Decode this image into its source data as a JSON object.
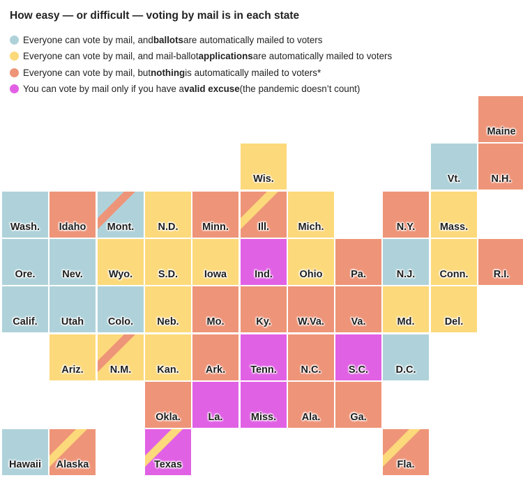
{
  "title": "How easy — or difficult — voting by mail is in each state",
  "colors": {
    "ballots": "#afd2da",
    "applications": "#fcd97a",
    "nothing": "#ee9478",
    "excuse": "#e161e5"
  },
  "legend": [
    {
      "key": "ballots",
      "pre": "Everyone can vote by mail, and ",
      "bold": "ballots",
      "post": " are automatically mailed to voters"
    },
    {
      "key": "applications",
      "pre": "Everyone can vote by mail, and mail-ballot ",
      "bold": "applications",
      "post": " are automatically mailed to voters"
    },
    {
      "key": "nothing",
      "pre": "Everyone can vote by mail, but ",
      "bold": "nothing",
      "post": " is automatically mailed to voters*"
    },
    {
      "key": "excuse",
      "pre": "You can vote by mail only if you have a ",
      "bold": "valid excuse",
      "post": " (the pandemic doesn’t count)"
    }
  ],
  "states": [
    {
      "label": "Maine",
      "row": 0,
      "col": 10,
      "category": "nothing"
    },
    {
      "label": "Wis.",
      "row": 1,
      "col": 5,
      "category": "applications"
    },
    {
      "label": "Vt.",
      "row": 1,
      "col": 9,
      "category": "ballots"
    },
    {
      "label": "N.H.",
      "row": 1,
      "col": 10,
      "category": "nothing"
    },
    {
      "label": "Wash.",
      "row": 2,
      "col": 0,
      "category": "ballots"
    },
    {
      "label": "Idaho",
      "row": 2,
      "col": 1,
      "category": "nothing"
    },
    {
      "label": "Mont.",
      "row": 2,
      "col": 2,
      "category": "ballots",
      "stripe": "nothing"
    },
    {
      "label": "N.D.",
      "row": 2,
      "col": 3,
      "category": "applications"
    },
    {
      "label": "Minn.",
      "row": 2,
      "col": 4,
      "category": "nothing"
    },
    {
      "label": "Ill.",
      "row": 2,
      "col": 5,
      "category": "nothing",
      "stripe": "applications"
    },
    {
      "label": "Mich.",
      "row": 2,
      "col": 6,
      "category": "applications"
    },
    {
      "label": "N.Y.",
      "row": 2,
      "col": 8,
      "category": "nothing"
    },
    {
      "label": "Mass.",
      "row": 2,
      "col": 9,
      "category": "applications"
    },
    {
      "label": "Ore.",
      "row": 3,
      "col": 0,
      "category": "ballots"
    },
    {
      "label": "Nev.",
      "row": 3,
      "col": 1,
      "category": "ballots"
    },
    {
      "label": "Wyo.",
      "row": 3,
      "col": 2,
      "category": "applications"
    },
    {
      "label": "S.D.",
      "row": 3,
      "col": 3,
      "category": "applications"
    },
    {
      "label": "Iowa",
      "row": 3,
      "col": 4,
      "category": "applications"
    },
    {
      "label": "Ind.",
      "row": 3,
      "col": 5,
      "category": "excuse"
    },
    {
      "label": "Ohio",
      "row": 3,
      "col": 6,
      "category": "applications"
    },
    {
      "label": "Pa.",
      "row": 3,
      "col": 7,
      "category": "nothing"
    },
    {
      "label": "N.J.",
      "row": 3,
      "col": 8,
      "category": "ballots"
    },
    {
      "label": "Conn.",
      "row": 3,
      "col": 9,
      "category": "applications"
    },
    {
      "label": "R.I.",
      "row": 3,
      "col": 10,
      "category": "nothing"
    },
    {
      "label": "Calif.",
      "row": 4,
      "col": 0,
      "category": "ballots"
    },
    {
      "label": "Utah",
      "row": 4,
      "col": 1,
      "category": "ballots"
    },
    {
      "label": "Colo.",
      "row": 4,
      "col": 2,
      "category": "ballots"
    },
    {
      "label": "Neb.",
      "row": 4,
      "col": 3,
      "category": "applications"
    },
    {
      "label": "Mo.",
      "row": 4,
      "col": 4,
      "category": "nothing"
    },
    {
      "label": "Ky.",
      "row": 4,
      "col": 5,
      "category": "nothing"
    },
    {
      "label": "W.Va.",
      "row": 4,
      "col": 6,
      "category": "nothing"
    },
    {
      "label": "Va.",
      "row": 4,
      "col": 7,
      "category": "nothing"
    },
    {
      "label": "Md.",
      "row": 4,
      "col": 8,
      "category": "applications"
    },
    {
      "label": "Del.",
      "row": 4,
      "col": 9,
      "category": "applications"
    },
    {
      "label": "Ariz.",
      "row": 5,
      "col": 1,
      "category": "applications"
    },
    {
      "label": "N.M.",
      "row": 5,
      "col": 2,
      "category": "applications",
      "stripe": "nothing"
    },
    {
      "label": "Kan.",
      "row": 5,
      "col": 3,
      "category": "applications"
    },
    {
      "label": "Ark.",
      "row": 5,
      "col": 4,
      "category": "nothing"
    },
    {
      "label": "Tenn.",
      "row": 5,
      "col": 5,
      "category": "excuse"
    },
    {
      "label": "N.C.",
      "row": 5,
      "col": 6,
      "category": "nothing"
    },
    {
      "label": "S.C.",
      "row": 5,
      "col": 7,
      "category": "excuse"
    },
    {
      "label": "D.C.",
      "row": 5,
      "col": 8,
      "category": "ballots"
    },
    {
      "label": "Okla.",
      "row": 6,
      "col": 3,
      "category": "nothing"
    },
    {
      "label": "La.",
      "row": 6,
      "col": 4,
      "category": "excuse"
    },
    {
      "label": "Miss.",
      "row": 6,
      "col": 5,
      "category": "excuse"
    },
    {
      "label": "Ala.",
      "row": 6,
      "col": 6,
      "category": "nothing"
    },
    {
      "label": "Ga.",
      "row": 6,
      "col": 7,
      "category": "nothing"
    },
    {
      "label": "Hawaii",
      "row": 7,
      "col": 0,
      "category": "ballots"
    },
    {
      "label": "Alaska",
      "row": 7,
      "col": 1,
      "category": "nothing",
      "stripe": "applications"
    },
    {
      "label": "Texas",
      "row": 7,
      "col": 3,
      "category": "excuse",
      "stripe": "applications"
    },
    {
      "label": "Fla.",
      "row": 7,
      "col": 8,
      "category": "nothing",
      "stripe": "applications"
    }
  ]
}
